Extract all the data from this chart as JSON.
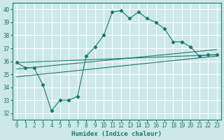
{
  "xlabel": "Humidex (Indice chaleur)",
  "bg_color": "#cce8e8",
  "grid_color": "#ffffff",
  "line_color": "#1a7a6a",
  "xlim": [
    -0.5,
    23.5
  ],
  "ylim": [
    31.5,
    40.5
  ],
  "xticks": [
    0,
    1,
    2,
    3,
    4,
    5,
    6,
    7,
    8,
    9,
    10,
    11,
    12,
    13,
    14,
    15,
    16,
    17,
    18,
    19,
    20,
    21,
    22,
    23
  ],
  "yticks": [
    32,
    33,
    34,
    35,
    36,
    37,
    38,
    39,
    40
  ],
  "curve1_x": [
    0,
    1,
    2,
    3,
    4,
    5,
    6,
    7,
    8,
    9,
    10,
    11,
    12,
    13,
    14,
    15,
    16,
    17,
    18,
    19,
    20,
    21,
    22,
    23
  ],
  "curve1_y": [
    35.9,
    35.5,
    35.5,
    34.2,
    32.2,
    33.0,
    33.0,
    33.3,
    36.4,
    37.1,
    38.0,
    39.8,
    39.9,
    39.3,
    39.8,
    39.3,
    39.0,
    38.5,
    37.5,
    37.5,
    37.1,
    36.4,
    36.5,
    36.5
  ],
  "curve2_x": [
    0,
    23
  ],
  "curve2_y": [
    35.9,
    36.5
  ],
  "curve3_x": [
    0,
    23
  ],
  "curve3_y": [
    35.4,
    36.9
  ],
  "curve4_x": [
    0,
    23
  ],
  "curve4_y": [
    34.8,
    36.4
  ]
}
